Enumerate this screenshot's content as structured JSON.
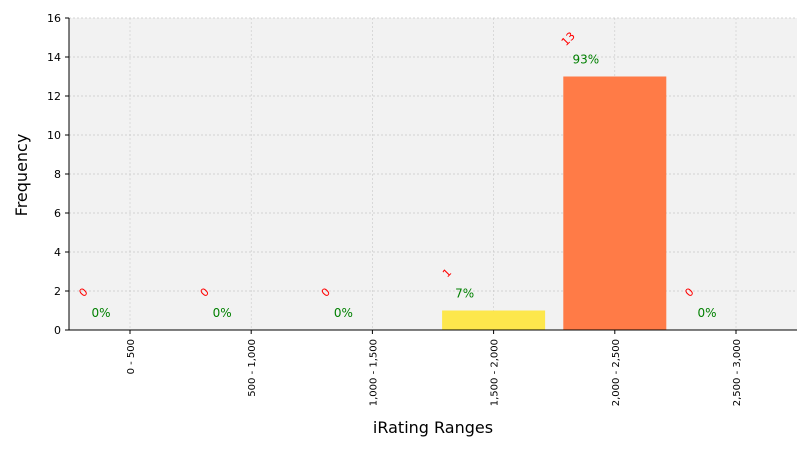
{
  "chart_data": {
    "type": "bar",
    "xlabel": "iRating Ranges",
    "ylabel": "Frequency",
    "ylim": [
      0,
      16
    ],
    "yticks": [
      "0",
      "2",
      "4",
      "6",
      "8",
      "10",
      "12",
      "14",
      "16"
    ],
    "grid": true,
    "categories": [
      "0 - 500",
      "500 - 1,000",
      "1,000 - 1,500",
      "1,500 - 2,000",
      "2,000 - 2,500",
      "2,500 - 3,000"
    ],
    "values": [
      0,
      0,
      0,
      1,
      13,
      0
    ],
    "count_labels": [
      "0",
      "0",
      "0",
      "1",
      "13",
      "0"
    ],
    "percent_labels": [
      "0%",
      "0%",
      "0%",
      "7%",
      "93%",
      "0%"
    ],
    "bar_colors": [
      "#ffe94a",
      "#ffe94a",
      "#ffe94a",
      "#fde74c",
      "#ff7b47",
      "#ffe94a"
    ],
    "count_label_color": "#ff0000",
    "percent_label_color": "#008000",
    "plot_background": "#f2f2f2",
    "grid_color": "#c8c8c8"
  }
}
